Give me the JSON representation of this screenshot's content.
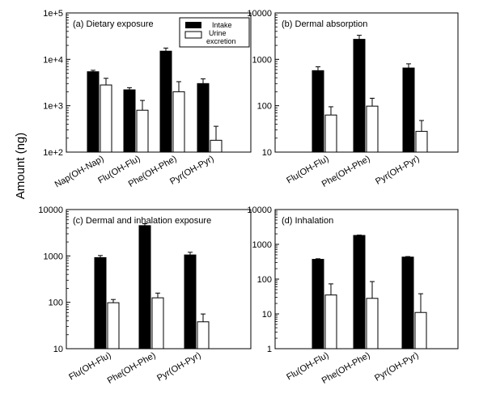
{
  "figure": {
    "ylabel": "Amount (ng)"
  },
  "legend": {
    "intake": "Intake",
    "urine_line1": "Urine",
    "urine_line2": "excretion"
  },
  "colors": {
    "intake": "#000000",
    "urine": "#ffffff",
    "axis": "#000000"
  },
  "chart_data": [
    {
      "type": "bar",
      "title": "(a) Dietary exposure",
      "scale": "log",
      "ylim": [
        100,
        100000
      ],
      "ytick_labels": [
        "1e+2",
        "1e+3",
        "1e+4",
        "1e+5"
      ],
      "categories": [
        "Nap(OH-Nap)",
        "Flu(OH-Flu)",
        "Phe(OH-Phe)",
        "Pyr(OH-Pyr)"
      ],
      "series": [
        {
          "name": "Intake",
          "values": [
            5400,
            2200,
            15000,
            3000
          ],
          "errors_upper": [
            5800,
            2450,
            17500,
            3800
          ]
        },
        {
          "name": "Urine excretion",
          "values": [
            2800,
            800,
            2000,
            180
          ],
          "errors_upper": [
            3900,
            1300,
            3300,
            360
          ]
        }
      ],
      "legend": "top-right"
    },
    {
      "type": "bar",
      "title": "(b) Dermal absorption",
      "scale": "log",
      "ylim": [
        10,
        10000
      ],
      "ytick_labels": [
        "10",
        "100",
        "1000",
        "10000"
      ],
      "categories": [
        "Flu(OH-Flu)",
        "Phe(OH-Phe)",
        "Pyr(OH-Pyr)"
      ],
      "series": [
        {
          "name": "Intake",
          "values": [
            570,
            2700,
            650
          ],
          "errors_upper": [
            690,
            3300,
            800
          ]
        },
        {
          "name": "Urine excretion",
          "values": [
            63,
            98,
            28
          ],
          "errors_upper": [
            95,
            145,
            48
          ]
        }
      ]
    },
    {
      "type": "bar",
      "title": "(c) Dermal and inhalation exposure",
      "scale": "log",
      "ylim": [
        10,
        10000
      ],
      "ytick_labels": [
        "10",
        "100",
        "1000",
        "10000"
      ],
      "categories": [
        "Flu(OH-Flu)",
        "Phe(OH-Phe)",
        "Pyr(OH-Pyr)"
      ],
      "series": [
        {
          "name": "Intake",
          "values": [
            920,
            4500,
            1050
          ],
          "errors_upper": [
            1020,
            4950,
            1200
          ]
        },
        {
          "name": "Urine excretion",
          "values": [
            98,
            125,
            38
          ],
          "errors_upper": [
            115,
            158,
            56
          ]
        }
      ]
    },
    {
      "type": "bar",
      "title": "(d) Inhalation",
      "scale": "log",
      "ylim": [
        1,
        10000
      ],
      "ytick_labels": [
        "1",
        "10",
        "100",
        "1000",
        "10000"
      ],
      "categories": [
        "Flu(OH-Flu)",
        "Phe(OH-Phe)",
        "Pyr(OH-Pyr)"
      ],
      "series": [
        {
          "name": "Intake",
          "values": [
            370,
            1800,
            430
          ],
          "errors_upper": [
            385,
            1850,
            445
          ]
        },
        {
          "name": "Urine excretion",
          "values": [
            35,
            28,
            11
          ],
          "errors_upper": [
            73,
            85,
            38
          ]
        }
      ]
    }
  ]
}
